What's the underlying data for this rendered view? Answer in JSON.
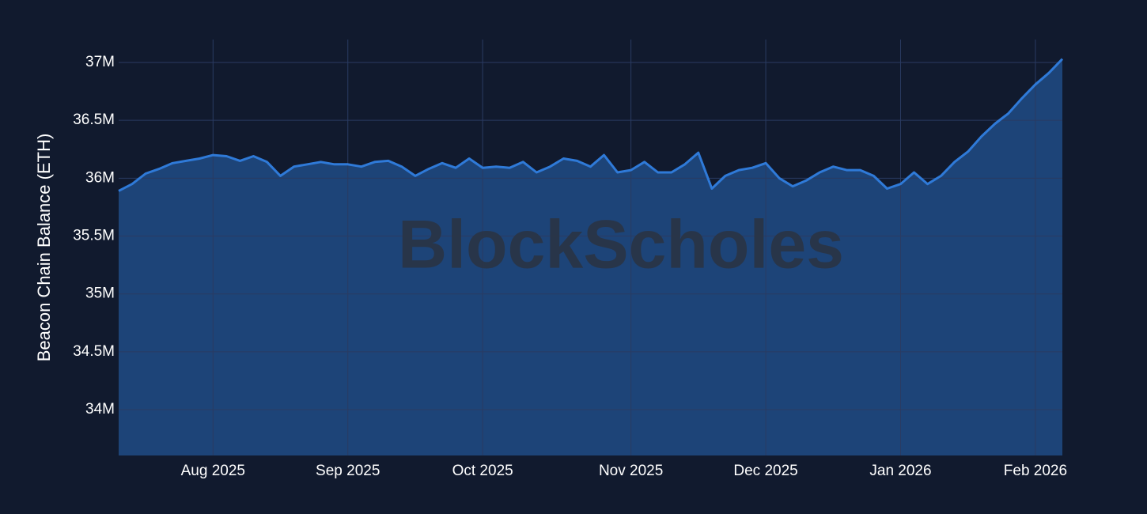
{
  "chart_data": {
    "type": "area",
    "y_axis_label": "Beacon Chain Balance (ETH)",
    "watermark": "BlockScholes",
    "categories": [
      null,
      null,
      null,
      null,
      null,
      null,
      null,
      "Aug 2025",
      null,
      null,
      null,
      null,
      null,
      null,
      null,
      null,
      null,
      "Sep 2025",
      null,
      null,
      null,
      null,
      null,
      null,
      null,
      null,
      null,
      "Oct 2025",
      null,
      null,
      null,
      null,
      null,
      null,
      null,
      null,
      null,
      null,
      "Nov 2025",
      null,
      null,
      null,
      null,
      null,
      null,
      null,
      null,
      null,
      "Dec 2025",
      null,
      null,
      null,
      null,
      null,
      null,
      null,
      null,
      null,
      "Jan 2026",
      null,
      null,
      null,
      null,
      null,
      null,
      null,
      null,
      null,
      "Feb 2026",
      null,
      null
    ],
    "values": [
      35890000,
      35950000,
      36040000,
      36080000,
      36130000,
      36150000,
      36170000,
      36200000,
      36190000,
      36150000,
      36190000,
      36140000,
      36020000,
      36100000,
      36120000,
      36140000,
      36120000,
      36120000,
      36100000,
      36140000,
      36150000,
      36100000,
      36020000,
      36080000,
      36130000,
      36090000,
      36170000,
      36090000,
      36100000,
      36090000,
      36140000,
      36050000,
      36100000,
      36170000,
      36150000,
      36100000,
      36200000,
      36050000,
      36070000,
      36140000,
      36050000,
      36050000,
      36120000,
      36220000,
      35910000,
      36020000,
      36070000,
      36090000,
      36130000,
      36000000,
      35930000,
      35980000,
      36050000,
      36100000,
      36070000,
      36070000,
      36020000,
      35910000,
      35950000,
      36050000,
      35950000,
      36020000,
      36140000,
      36230000,
      36360000,
      36470000,
      36560000,
      36690000,
      36810000,
      36910000,
      37030000
    ],
    "color": "#2f7ad8",
    "area_color": "#1d4478",
    "ylim": [
      33604000,
      37198000
    ],
    "yticks": [
      {
        "value": 34000000,
        "label": "34M"
      },
      {
        "value": 34500000,
        "label": "34.5M"
      },
      {
        "value": 35000000,
        "label": "35M"
      },
      {
        "value": 35500000,
        "label": "35.5M"
      },
      {
        "value": 36000000,
        "label": "36M"
      },
      {
        "value": 36500000,
        "label": "36.5M"
      },
      {
        "value": 37000000,
        "label": "37M"
      }
    ],
    "grid": true
  }
}
